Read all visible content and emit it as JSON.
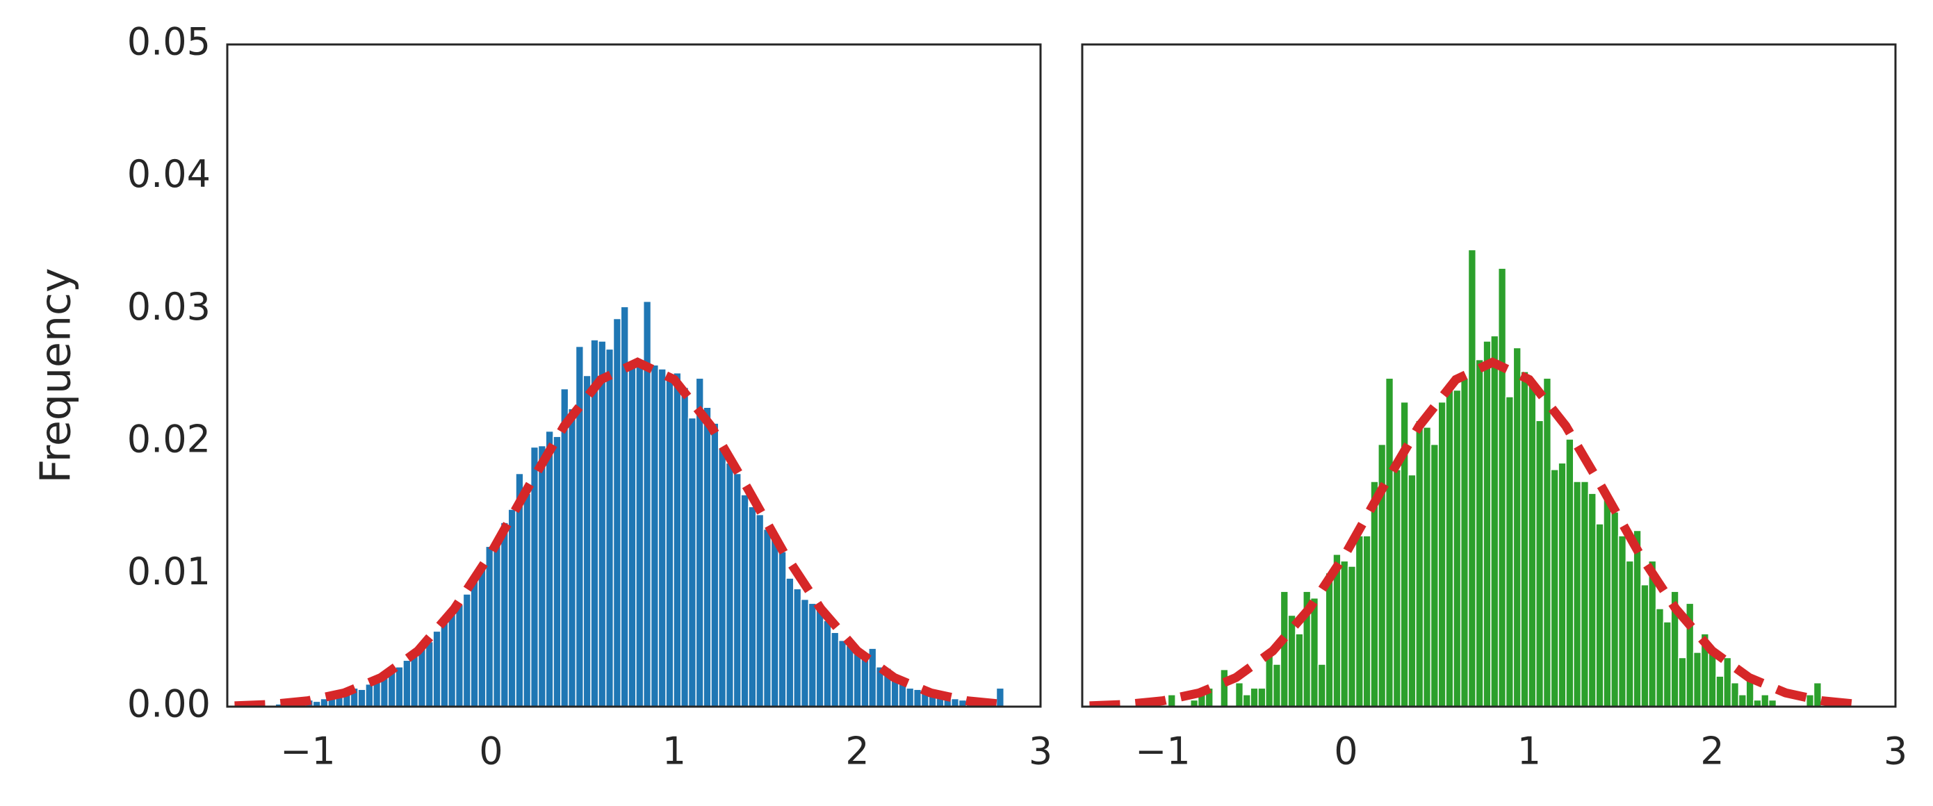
{
  "chart_data": [
    {
      "type": "histogram",
      "ylabel": "Frequency",
      "color": "#1f77b4",
      "bins": [
        -1.3,
        -1.259,
        -1.218,
        -1.177,
        -1.136,
        -1.095,
        -1.054,
        -1.013,
        -0.972,
        -0.931,
        -0.89,
        -0.849,
        -0.808,
        -0.767,
        -0.726,
        -0.685,
        -0.644,
        -0.603,
        -0.562,
        -0.521,
        -0.48,
        -0.439,
        -0.398,
        -0.357,
        -0.316,
        -0.275,
        -0.234,
        -0.193,
        -0.152,
        -0.111,
        -0.07,
        -0.029,
        0.012,
        0.053,
        0.094,
        0.135,
        0.176,
        0.217,
        0.258,
        0.299,
        0.34,
        0.381,
        0.422,
        0.463,
        0.504,
        0.545,
        0.586,
        0.627,
        0.668,
        0.709,
        0.75,
        0.791,
        0.832,
        0.873,
        0.914,
        0.955,
        0.996,
        1.037,
        1.078,
        1.119,
        1.16,
        1.201,
        1.242,
        1.283,
        1.324,
        1.365,
        1.406,
        1.447,
        1.488,
        1.529,
        1.57,
        1.611,
        1.652,
        1.693,
        1.734,
        1.775,
        1.816,
        1.857,
        1.898,
        1.939,
        1.98,
        2.021,
        2.062,
        2.103,
        2.144,
        2.185,
        2.226,
        2.267,
        2.308,
        2.349,
        2.39,
        2.431,
        2.472,
        2.513,
        2.554,
        2.595,
        2.636,
        2.677,
        2.718,
        2.759,
        2.8
      ],
      "values": [
        0,
        0.0001,
        0,
        0.0002,
        0.0001,
        0.0003,
        0.0003,
        0.0005,
        0.0004,
        0.0006,
        0.0008,
        0.001,
        0.0011,
        0.0014,
        0.0013,
        0.0017,
        0.0019,
        0.0024,
        0.0026,
        0.003,
        0.0035,
        0.0038,
        0.0046,
        0.0049,
        0.0057,
        0.0064,
        0.007,
        0.0077,
        0.0085,
        0.0096,
        0.0105,
        0.0121,
        0.0127,
        0.0139,
        0.0149,
        0.0176,
        0.0161,
        0.0196,
        0.0197,
        0.0208,
        0.0204,
        0.024,
        0.0225,
        0.0272,
        0.025,
        0.0277,
        0.0276,
        0.027,
        0.0293,
        0.0302,
        0.026,
        0.0262,
        0.0306,
        0.0258,
        0.0255,
        0.025,
        0.0252,
        0.0241,
        0.0218,
        0.0248,
        0.0226,
        0.0214,
        0.0195,
        0.0184,
        0.0176,
        0.016,
        0.0151,
        0.0145,
        0.0134,
        0.0127,
        0.0117,
        0.0097,
        0.0089,
        0.0081,
        0.0078,
        0.0074,
        0.0065,
        0.0056,
        0.005,
        0.0046,
        0.0042,
        0.0039,
        0.0044,
        0.003,
        0.0029,
        0.0021,
        0.0018,
        0.0014,
        0.0013,
        0.0012,
        0.001,
        0.0008,
        0.0007,
        0.0006,
        0.0005,
        0.0004,
        0.0003,
        0.0002,
        0.0003,
        0.0014
      ],
      "fit": {
        "color": "#d62728",
        "x": [
          -1.4,
          -1.2,
          -1.0,
          -0.8,
          -0.6,
          -0.4,
          -0.2,
          0,
          0.2,
          0.4,
          0.6,
          0.8,
          1.0,
          1.2,
          1.4,
          1.6,
          1.8,
          2.0,
          2.2,
          2.4,
          2.6,
          2.8
        ],
        "y": [
          6e-05,
          0.00017,
          0.00044,
          0.00104,
          0.0022,
          0.0042,
          0.0074,
          0.0116,
          0.0165,
          0.0212,
          0.0247,
          0.026,
          0.0247,
          0.0212,
          0.0165,
          0.0116,
          0.0074,
          0.0042,
          0.0022,
          0.00104,
          0.00044,
          0.00017
        ]
      },
      "xlim": [
        -1.44,
        3
      ],
      "ylim": [
        0,
        0.05
      ],
      "xticks": [
        {
          "value": -1,
          "label": "−1"
        },
        0,
        1,
        2,
        3
      ],
      "yticks": [
        {
          "value": 0,
          "label": "0.00"
        },
        0.01,
        0.02,
        0.03,
        0.04,
        0.05
      ]
    },
    {
      "type": "histogram",
      "color": "#2ca02c",
      "bins": [
        -1.3,
        -1.259,
        -1.218,
        -1.177,
        -1.136,
        -1.095,
        -1.054,
        -1.013,
        -0.972,
        -0.931,
        -0.89,
        -0.849,
        -0.808,
        -0.767,
        -0.726,
        -0.685,
        -0.644,
        -0.603,
        -0.562,
        -0.521,
        -0.48,
        -0.439,
        -0.398,
        -0.357,
        -0.316,
        -0.275,
        -0.234,
        -0.193,
        -0.152,
        -0.111,
        -0.07,
        -0.029,
        0.012,
        0.053,
        0.094,
        0.135,
        0.176,
        0.217,
        0.258,
        0.299,
        0.34,
        0.381,
        0.422,
        0.463,
        0.504,
        0.545,
        0.586,
        0.627,
        0.668,
        0.709,
        0.75,
        0.791,
        0.832,
        0.873,
        0.914,
        0.955,
        0.996,
        1.037,
        1.078,
        1.119,
        1.16,
        1.201,
        1.242,
        1.283,
        1.324,
        1.365,
        1.406,
        1.447,
        1.488,
        1.529,
        1.57,
        1.611,
        1.652,
        1.693,
        1.734,
        1.775,
        1.816,
        1.857,
        1.898,
        1.939,
        1.98,
        2.021,
        2.062,
        2.103,
        2.144,
        2.185,
        2.226,
        2.267,
        2.308,
        2.349,
        2.39,
        2.431,
        2.472,
        2.513,
        2.554,
        2.595,
        2.636,
        2.677,
        2.718,
        2.759,
        2.8
      ],
      "values": [
        0,
        0,
        0,
        0,
        0,
        0,
        0.0005,
        0,
        0.0009,
        0,
        0,
        0.0005,
        0.0014,
        0.0014,
        0,
        0.0028,
        0,
        0.0018,
        0.0009,
        0.0014,
        0.0014,
        0.0041,
        0.0032,
        0.0087,
        0.0069,
        0.0055,
        0.0087,
        0.0082,
        0.0032,
        0.0101,
        0.0115,
        0.011,
        0.0106,
        0.0129,
        0.0129,
        0.017,
        0.0198,
        0.0248,
        0.0179,
        0.023,
        0.0175,
        0.0216,
        0.0211,
        0.0198,
        0.023,
        0.0244,
        0.0239,
        0.0248,
        0.0345,
        0.0262,
        0.0276,
        0.028,
        0.0331,
        0.0234,
        0.0271,
        0.0253,
        0.0244,
        0.0216,
        0.0248,
        0.0179,
        0.0184,
        0.0202,
        0.017,
        0.017,
        0.0161,
        0.0138,
        0.0161,
        0.0147,
        0.0129,
        0.011,
        0.0133,
        0.0092,
        0.011,
        0.0074,
        0.0064,
        0.0087,
        0.0037,
        0.0078,
        0.0041,
        0.0055,
        0.0041,
        0.0023,
        0.0037,
        0.0018,
        0.0009,
        0.0023,
        0.0005,
        0.0009,
        0.0005,
        0,
        0,
        0,
        0,
        0.0009,
        0.0018,
        0,
        0,
        0,
        0,
        0
      ],
      "fit": {
        "color": "#d62728",
        "x": [
          -1.4,
          -1.2,
          -1.0,
          -0.8,
          -0.6,
          -0.4,
          -0.2,
          0,
          0.2,
          0.4,
          0.6,
          0.8,
          1.0,
          1.2,
          1.4,
          1.6,
          1.8,
          2.0,
          2.2,
          2.4,
          2.6,
          2.8
        ],
        "y": [
          6e-05,
          0.00017,
          0.00044,
          0.00104,
          0.0022,
          0.0042,
          0.0074,
          0.0116,
          0.0165,
          0.0212,
          0.0247,
          0.026,
          0.0247,
          0.0212,
          0.0165,
          0.0116,
          0.0074,
          0.0042,
          0.0022,
          0.00104,
          0.00044,
          0.00017
        ]
      },
      "xlim": [
        -1.44,
        3
      ],
      "ylim": [
        0,
        0.05
      ],
      "xticks": [
        {
          "value": -1,
          "label": "−1"
        },
        0,
        1,
        2,
        3
      ]
    }
  ]
}
